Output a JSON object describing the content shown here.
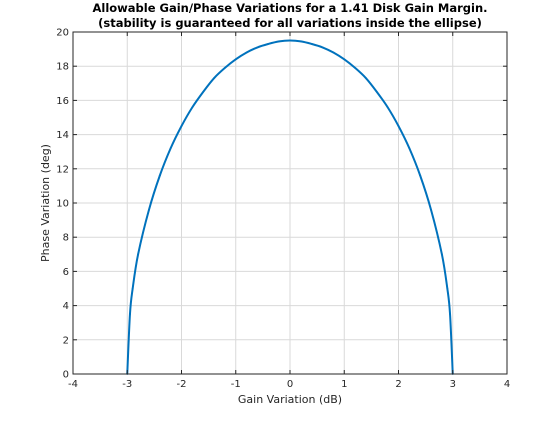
{
  "chart_data": {
    "type": "line",
    "title": "Allowable Gain/Phase Variations for a 1.41 Disk Gain Margin.",
    "subtitle": "(stability is guaranteed for all variations inside the ellipse)",
    "xlabel": "Gain Variation (dB)",
    "ylabel": "Phase Variation (deg)",
    "xlim": [
      -4,
      4
    ],
    "ylim": [
      0,
      20
    ],
    "xticks": [
      "-4",
      "-3",
      "-2",
      "-1",
      "0",
      "1",
      "2",
      "3",
      "4"
    ],
    "yticks": [
      "0",
      "2",
      "4",
      "6",
      "8",
      "10",
      "12",
      "14",
      "16",
      "18",
      "20"
    ],
    "grid": true,
    "legend": "none",
    "series": [
      {
        "color": "#0072BD",
        "x": [
          -3.0,
          -2.95,
          -2.9,
          -2.8,
          -2.6,
          -2.4,
          -2.2,
          -2.0,
          -1.8,
          -1.6,
          -1.4,
          -1.2,
          -1.0,
          -0.8,
          -0.6,
          -0.4,
          -0.2,
          0.0,
          0.2,
          0.4,
          0.6,
          0.8,
          1.0,
          1.2,
          1.4,
          1.6,
          1.8,
          2.0,
          2.2,
          2.4,
          2.6,
          2.8,
          2.9,
          2.95,
          3.0
        ],
        "y": [
          0.0,
          3.5,
          5.0,
          7.0,
          9.6,
          11.6,
          13.2,
          14.5,
          15.6,
          16.5,
          17.3,
          17.9,
          18.4,
          18.8,
          19.1,
          19.3,
          19.45,
          19.5,
          19.45,
          19.3,
          19.1,
          18.8,
          18.4,
          17.9,
          17.3,
          16.5,
          15.6,
          14.5,
          13.2,
          11.6,
          9.6,
          7.0,
          5.0,
          3.5,
          0.0
        ]
      }
    ]
  }
}
